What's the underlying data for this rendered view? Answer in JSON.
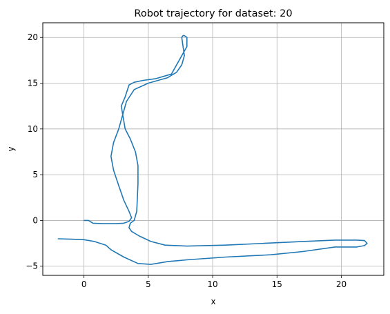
{
  "chart_data": {
    "type": "line",
    "title": "Robot trajectory for dataset: 20",
    "xlabel": "x",
    "ylabel": "y",
    "xlim": [
      -3.2,
      23.3
    ],
    "ylim": [
      -6.0,
      21.6
    ],
    "xticks": [
      0,
      5,
      10,
      15,
      20
    ],
    "yticks": [
      -5,
      0,
      5,
      10,
      15,
      20
    ],
    "xtick_labels": [
      "0",
      "5",
      "10",
      "15",
      "20"
    ],
    "ytick_labels": [
      "−5",
      "0",
      "5",
      "10",
      "15",
      "20"
    ],
    "grid": true,
    "line_color": "#1f77b4",
    "series": [
      {
        "x": [
          0.0,
          0.35,
          0.7,
          1.5,
          2.5,
          3.1,
          3.5,
          3.7,
          3.5,
          3.1,
          2.7,
          2.3,
          2.1,
          2.3,
          2.7,
          3.0,
          3.3,
          3.9,
          5.0,
          6.5,
          7.2,
          7.6,
          7.8,
          7.7,
          7.6,
          7.7,
          7.8,
          8.0,
          8.0,
          7.6,
          6.8,
          5.6,
          4.6,
          3.9,
          3.5,
          3.2,
          2.9,
          3.2,
          3.6,
          4.0,
          4.2,
          4.2,
          4.1,
          3.9,
          3.6,
          3.5,
          3.7,
          4.3,
          5.2,
          6.3,
          8.0,
          11.0,
          14.0,
          17.0,
          19.5,
          21.2,
          21.8,
          22.0,
          21.8,
          21.2,
          19.5,
          17.0,
          14.5,
          11.0,
          8.0,
          6.5,
          5.2,
          4.2,
          3.1,
          2.1,
          1.7,
          0.8,
          0.0,
          -1.0,
          -2.0
        ],
        "y": [
          0.0,
          0.0,
          -0.3,
          -0.35,
          -0.35,
          -0.3,
          -0.1,
          0.3,
          1.0,
          2.2,
          3.8,
          5.5,
          7.0,
          8.5,
          10.0,
          11.5,
          13.0,
          14.3,
          15.0,
          15.6,
          16.2,
          17.0,
          18.0,
          19.0,
          20.0,
          20.2,
          20.2,
          20.0,
          19.0,
          18.0,
          16.0,
          15.5,
          15.3,
          15.1,
          14.8,
          13.5,
          12.5,
          10.0,
          8.9,
          7.5,
          6.0,
          4.0,
          1.0,
          0.0,
          -0.3,
          -0.8,
          -1.2,
          -1.7,
          -2.3,
          -2.7,
          -2.8,
          -2.7,
          -2.5,
          -2.3,
          -2.15,
          -2.15,
          -2.2,
          -2.5,
          -2.75,
          -2.9,
          -2.9,
          -3.4,
          -3.75,
          -4.0,
          -4.3,
          -4.5,
          -4.8,
          -4.7,
          -4.0,
          -3.2,
          -2.7,
          -2.3,
          -2.1,
          -2.05,
          -2.0
        ]
      }
    ]
  }
}
